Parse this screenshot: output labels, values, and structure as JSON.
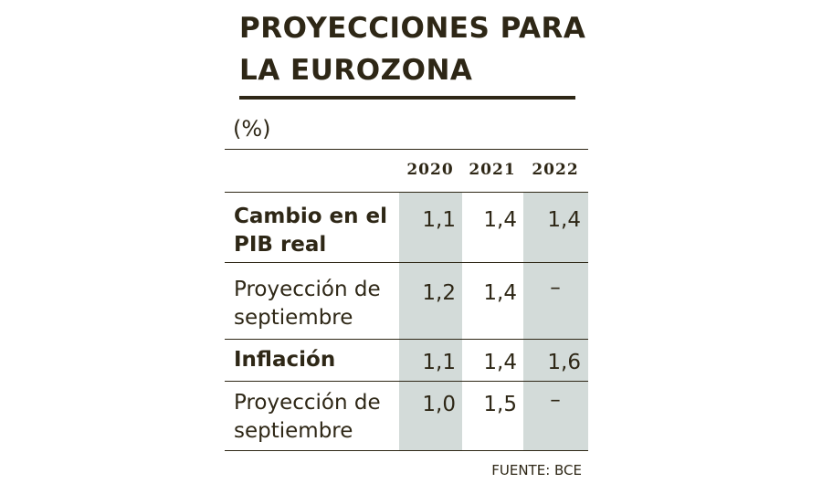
{
  "chart_data": {
    "type": "table",
    "title": "PROYECCIONES PARA LA EUROZONA",
    "unit": "(%)",
    "columns": [
      "2020",
      "2021",
      "2022"
    ],
    "rows": [
      {
        "label": "Cambio en el PIB real",
        "values": [
          "1,1",
          "1,4",
          "1,4"
        ]
      },
      {
        "label": "Proyección de septiembre",
        "values": [
          "1,2",
          "1,4",
          "–"
        ]
      },
      {
        "label": "Inflación",
        "values": [
          "1,1",
          "1,4",
          "1,6"
        ]
      },
      {
        "label": "Proyección de septiembre",
        "values": [
          "1,0",
          "1,5",
          "–"
        ]
      }
    ],
    "source": "FUENTE: BCE",
    "colors": {
      "text": "#2e2716",
      "shade": "#d3dbd9",
      "background": "#ffffff"
    }
  }
}
